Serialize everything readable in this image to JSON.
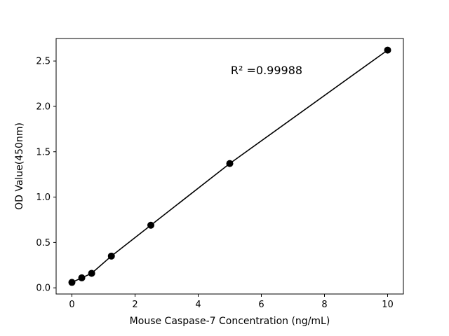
{
  "chart_data": {
    "type": "scatter",
    "title": "",
    "xlabel": "Mouse Caspase-7 Concentration (ng/mL)",
    "ylabel": "OD Value(450nm)",
    "annotation": "R² =0.99988",
    "x": [
      0,
      0.3125,
      0.625,
      1.25,
      2.5,
      5,
      10
    ],
    "y": [
      0.06,
      0.11,
      0.16,
      0.35,
      0.69,
      1.37,
      2.62
    ],
    "xlim": [
      -0.5,
      10.5
    ],
    "ylim": [
      -0.068,
      2.748
    ],
    "xticks": [
      0,
      2,
      4,
      6,
      8,
      10
    ],
    "yticks": [
      0.0,
      0.5,
      1.0,
      1.5,
      2.0,
      2.5
    ],
    "grid": false,
    "legend": null,
    "line_color": "#000000",
    "marker_color": "#000000",
    "background_color": "#ffffff",
    "axis_color": "#000000"
  }
}
